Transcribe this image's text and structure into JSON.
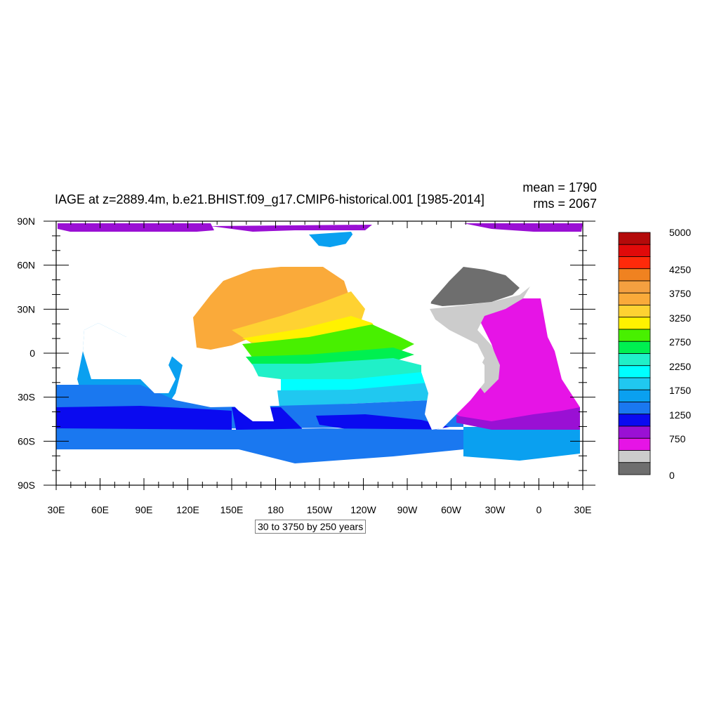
{
  "title": "IAGE at z=2889.4m, b.e21.BHIST.f09_g17.CMIP6-historical.001 [1985-2014]",
  "stats": {
    "mean": "mean = 1790",
    "rms": "rms = 2067"
  },
  "axes": {
    "lon_labels": [
      "30E",
      "60E",
      "90E",
      "120E",
      "150E",
      "180",
      "150W",
      "120W",
      "90W",
      "60W",
      "30W",
      "0",
      "30E"
    ],
    "lat_labels": [
      "90N",
      "60N",
      "30N",
      "0",
      "30S",
      "60S",
      "90S"
    ]
  },
  "contour_info": "30 to 3750 by 250 years",
  "colorbar": {
    "labels": [
      "5000",
      "4250",
      "3750",
      "3250",
      "2750",
      "2250",
      "1750",
      "1250",
      "750",
      "0"
    ],
    "colors": [
      "#b40a0a",
      "#e10a0a",
      "#ff2a0a",
      "#f08220",
      "#f4a040",
      "#faaa3a",
      "#fed232",
      "#fff200",
      "#48f000",
      "#00f050",
      "#20f0c8",
      "#00ffff",
      "#20c8f0",
      "#0aa0f0",
      "#1a78f0",
      "#0a0af0",
      "#9a10d4",
      "#e614e6",
      "#cccccc",
      "#6e6e6e"
    ]
  },
  "colors": {
    "land": "#ffffff",
    "ocean_zones": {
      "north_pacific_old": "#faaa3a",
      "pacific_yellow": "#fff200",
      "pacific_green": "#48f000",
      "pacific_cyan": "#20f0c8",
      "south_pacific_light_blue": "#20c8f0",
      "southern_ocean_blue": "#1a78f0",
      "southern_ocean_deep_blue": "#0a0af0",
      "atlantic_magenta": "#e614e6",
      "atlantic_gray": "#cccccc",
      "north_atlantic_dark_gray": "#6e6e6e",
      "arctic_purple": "#9a10d4"
    }
  },
  "chart_data": {
    "type": "heatmap",
    "variable": "IAGE",
    "depth": "z=2889.4m",
    "case": "b.e21.BHIST.f09_g17.CMIP6-historical.001",
    "period": "1985-2014",
    "mean": 1790,
    "rms": 2067,
    "contour_min": 30,
    "contour_max": 3750,
    "contour_interval": 250,
    "units": "years",
    "colorbar_levels": [
      0,
      750,
      1250,
      1750,
      2250,
      2750,
      3250,
      3750,
      4250,
      5000
    ],
    "lon_range": [
      "30E",
      "30E"
    ],
    "lat_range": [
      "90S",
      "90N"
    ]
  }
}
